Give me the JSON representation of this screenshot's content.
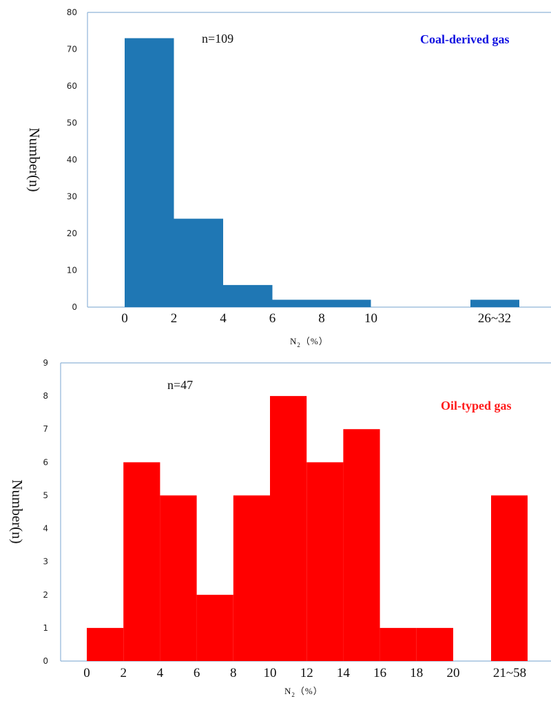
{
  "chart_data": [
    {
      "type": "bar",
      "title": "Coal-derived gas",
      "title_color": "#1010e0",
      "bar_color": "#1f77b4",
      "annotation": "n=109",
      "ylabel": "Number(n)",
      "xlabel_main": "N",
      "xlabel_sub": "2",
      "xlabel_tail": "（%）",
      "ylim": [
        0,
        80
      ],
      "yticks": [
        "0",
        "10",
        "20",
        "30",
        "40",
        "50",
        "60",
        "70",
        "80"
      ],
      "xticks": [
        "0",
        "2",
        "4",
        "6",
        "8",
        "10",
        "26~32"
      ],
      "bins": [
        {
          "range": "0-2",
          "value": 73
        },
        {
          "range": "2-4",
          "value": 24
        },
        {
          "range": "4-6",
          "value": 6
        },
        {
          "range": "6-8",
          "value": 2
        },
        {
          "range": "8-10",
          "value": 2
        },
        {
          "range": "26~32",
          "value": 2
        }
      ],
      "grid": false
    },
    {
      "type": "bar",
      "title": "Oil-typed gas",
      "title_color": "#ff1a1a",
      "bar_color": "#ff0000",
      "annotation": "n=47",
      "ylabel": "Number(n)",
      "xlabel_main": "N",
      "xlabel_sub": "2",
      "xlabel_tail": "（%）",
      "ylim": [
        0,
        9
      ],
      "yticks": [
        "0",
        "1",
        "2",
        "3",
        "4",
        "5",
        "6",
        "7",
        "8",
        "9"
      ],
      "xticks": [
        "0",
        "2",
        "4",
        "6",
        "8",
        "10",
        "12",
        "14",
        "16",
        "18",
        "20",
        "21~58"
      ],
      "bins": [
        {
          "range": "0-2",
          "value": 1
        },
        {
          "range": "2-4",
          "value": 6
        },
        {
          "range": "4-6",
          "value": 5
        },
        {
          "range": "6-8",
          "value": 2
        },
        {
          "range": "8-10",
          "value": 5
        },
        {
          "range": "10-12",
          "value": 8
        },
        {
          "range": "12-14",
          "value": 6
        },
        {
          "range": "14-16",
          "value": 7
        },
        {
          "range": "16-18",
          "value": 1
        },
        {
          "range": "18-20",
          "value": 1
        },
        {
          "range": "21~58",
          "value": 5
        }
      ],
      "grid": false
    }
  ]
}
